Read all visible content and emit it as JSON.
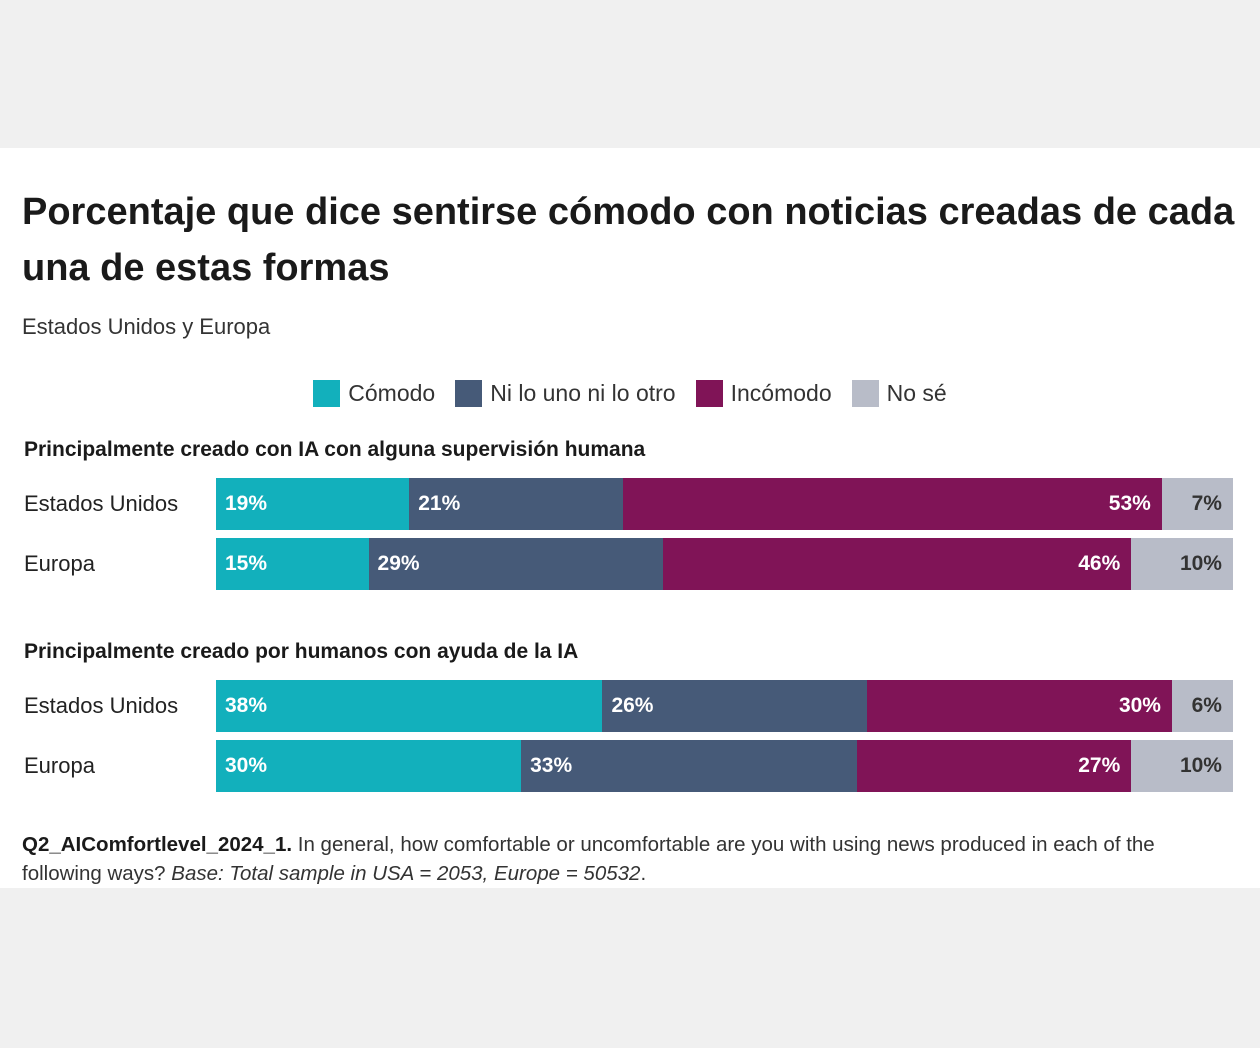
{
  "title": "Porcentaje que dice sentirse cómodo con noticias creadas de cada una de estas formas",
  "subtitle": "Estados Unidos y Europa",
  "legend": [
    {
      "label": "Cómodo",
      "color": "#12b0bc"
    },
    {
      "label": "Ni lo uno ni lo otro",
      "color": "#465a78"
    },
    {
      "label": "Incómodo",
      "color": "#801457"
    },
    {
      "label": "No sé",
      "color": "#b8bcc8"
    }
  ],
  "chart_data": {
    "type": "bar",
    "orientation": "horizontal-stacked-100",
    "title": "Porcentaje que dice sentirse cómodo con noticias creadas de cada una de estas formas",
    "subtitle": "Estados Unidos y Europa",
    "series_names": [
      "Cómodo",
      "Ni lo uno ni lo otro",
      "Incómodo",
      "No sé"
    ],
    "colors": [
      "#12b0bc",
      "#465a78",
      "#801457",
      "#b8bcc8"
    ],
    "groups": [
      {
        "title": "Principalmente creado con IA con alguna supervisión humana",
        "rows": [
          {
            "label": "Estados Unidos",
            "values": [
              19,
              21,
              53,
              7
            ],
            "labels": [
              "19%",
              "21%",
              "53%",
              "7%"
            ]
          },
          {
            "label": "Europa",
            "values": [
              15,
              29,
              46,
              10
            ],
            "labels": [
              "15%",
              "29%",
              "46%",
              "10%"
            ]
          }
        ]
      },
      {
        "title": "Principalmente creado por humanos con ayuda de la IA",
        "rows": [
          {
            "label": "Estados Unidos",
            "values": [
              38,
              26,
              30,
              6
            ],
            "labels": [
              "38%",
              "26%",
              "30%",
              "6%"
            ]
          },
          {
            "label": "Europa",
            "values": [
              30,
              33,
              27,
              10
            ],
            "labels": [
              "30%",
              "33%",
              "27%",
              "10%"
            ]
          }
        ]
      }
    ]
  },
  "footnote": {
    "code": "Q2_AIComfortlevel_2024_1.",
    "question": " In general, how comfortable or uncomfortable are you with using news produced in each of the following ways? ",
    "base": "Base: Total sample in USA = 2053, Europe = 50532",
    "end": "."
  }
}
